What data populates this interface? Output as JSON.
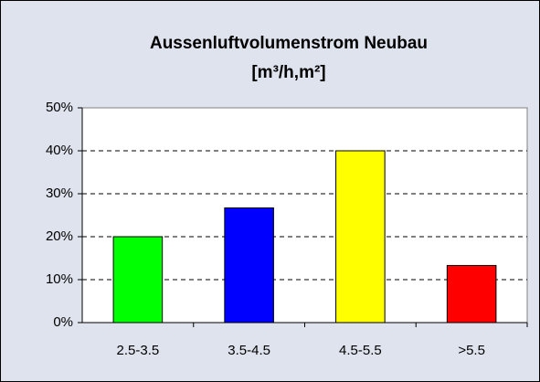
{
  "chart_data": {
    "type": "bar",
    "title": "Aussenluftvolumenstrom Neubau",
    "subtitle": "[m³/h,m²]",
    "categories": [
      "2.5-3.5",
      "3.5-4.5",
      "4.5-5.5",
      ">5.5"
    ],
    "values": [
      20,
      26.7,
      40,
      13.3
    ],
    "colors": [
      "#00ff00",
      "#0000ff",
      "#ffff00",
      "#ff0000"
    ],
    "ylim": [
      0,
      50
    ],
    "yticks": [
      {
        "value": 0,
        "label": "0%"
      },
      {
        "value": 10,
        "label": "10%"
      },
      {
        "value": 20,
        "label": "20%"
      },
      {
        "value": 30,
        "label": "30%"
      },
      {
        "value": 40,
        "label": "40%"
      },
      {
        "value": 50,
        "label": "50%"
      }
    ],
    "grid": true
  }
}
